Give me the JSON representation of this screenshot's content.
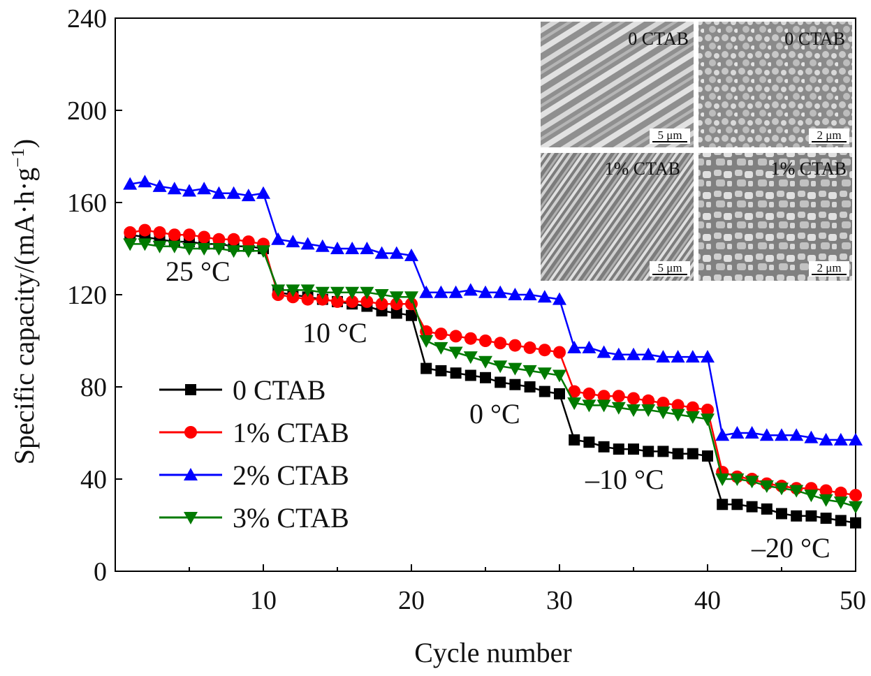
{
  "chart_data": {
    "type": "line",
    "xlabel": "Cycle number",
    "ylabel": "Specific capacity/(mA·h·g",
    "ylabel_sup": "−1",
    "ylabel_close": ")",
    "xlim": [
      0,
      50
    ],
    "ylim": [
      0,
      240
    ],
    "x_ticks": [
      10,
      20,
      30,
      40,
      50
    ],
    "y_ticks": [
      0,
      40,
      80,
      120,
      160,
      200,
      240
    ],
    "x_tick_labels": [
      "10",
      "20",
      "30",
      "40",
      "50"
    ],
    "y_tick_labels": [
      "0",
      "40",
      "80",
      "120",
      "160",
      "200",
      "240"
    ],
    "grid": false,
    "legend_position": "bottom-left",
    "annotations": [
      "25 °C",
      "10 °C",
      "0 °C",
      "–10 °C",
      "–20 °C"
    ],
    "x": [
      1,
      2,
      3,
      4,
      5,
      6,
      7,
      8,
      9,
      10,
      11,
      12,
      13,
      14,
      15,
      16,
      17,
      18,
      19,
      20,
      21,
      22,
      23,
      24,
      25,
      26,
      27,
      28,
      29,
      30,
      31,
      32,
      33,
      34,
      35,
      36,
      37,
      38,
      39,
      40,
      41,
      42,
      43,
      44,
      45,
      46,
      47,
      48,
      49,
      50
    ],
    "series": [
      {
        "name": "0 CTAB",
        "color": "#000000",
        "marker": "square",
        "values": [
          146,
          145,
          144,
          143,
          143,
          142,
          142,
          141,
          141,
          140,
          121,
          120,
          119,
          118,
          117,
          116,
          115,
          113,
          112,
          111,
          88,
          87,
          86,
          85,
          84,
          82,
          81,
          80,
          78,
          77,
          57,
          56,
          54,
          53,
          53,
          52,
          52,
          51,
          51,
          50,
          29,
          29,
          28,
          27,
          25,
          24,
          24,
          23,
          22,
          21
        ]
      },
      {
        "name": "1% CTAB",
        "color": "#ff0000",
        "marker": "circle",
        "values": [
          147,
          148,
          147,
          146,
          146,
          145,
          144,
          144,
          143,
          142,
          120,
          119,
          118,
          118,
          117,
          117,
          117,
          116,
          116,
          116,
          104,
          103,
          102,
          101,
          100,
          99,
          98,
          97,
          96,
          95,
          78,
          77,
          76,
          76,
          75,
          74,
          73,
          72,
          71,
          70,
          43,
          41,
          40,
          38,
          37,
          36,
          36,
          35,
          34,
          33
        ]
      },
      {
        "name": "2% CTAB",
        "color": "#0000ff",
        "marker": "triangle-up",
        "values": [
          168,
          169,
          167,
          166,
          165,
          166,
          164,
          164,
          163,
          164,
          144,
          143,
          142,
          141,
          140,
          140,
          140,
          138,
          138,
          137,
          121,
          121,
          121,
          122,
          121,
          121,
          120,
          120,
          119,
          118,
          97,
          97,
          95,
          94,
          94,
          94,
          93,
          93,
          93,
          93,
          59,
          60,
          60,
          59,
          59,
          59,
          58,
          57,
          57,
          57
        ]
      },
      {
        "name": "3% CTAB",
        "color": "#007a00",
        "marker": "triangle-down",
        "values": [
          142,
          142,
          141,
          141,
          140,
          140,
          140,
          139,
          139,
          139,
          122,
          122,
          122,
          121,
          121,
          121,
          121,
          120,
          119,
          119,
          100,
          97,
          95,
          93,
          91,
          89,
          88,
          87,
          86,
          85,
          73,
          72,
          72,
          71,
          70,
          70,
          69,
          68,
          67,
          66,
          40,
          40,
          39,
          37,
          36,
          35,
          33,
          31,
          30,
          28
        ]
      }
    ],
    "insets": [
      {
        "label": "0 CTAB",
        "scale": "5 μm"
      },
      {
        "label": "0 CTAB",
        "scale": "2 μm"
      },
      {
        "label": "1% CTAB",
        "scale": "5 μm"
      },
      {
        "label": "1% CTAB",
        "scale": "2 μm"
      }
    ]
  }
}
